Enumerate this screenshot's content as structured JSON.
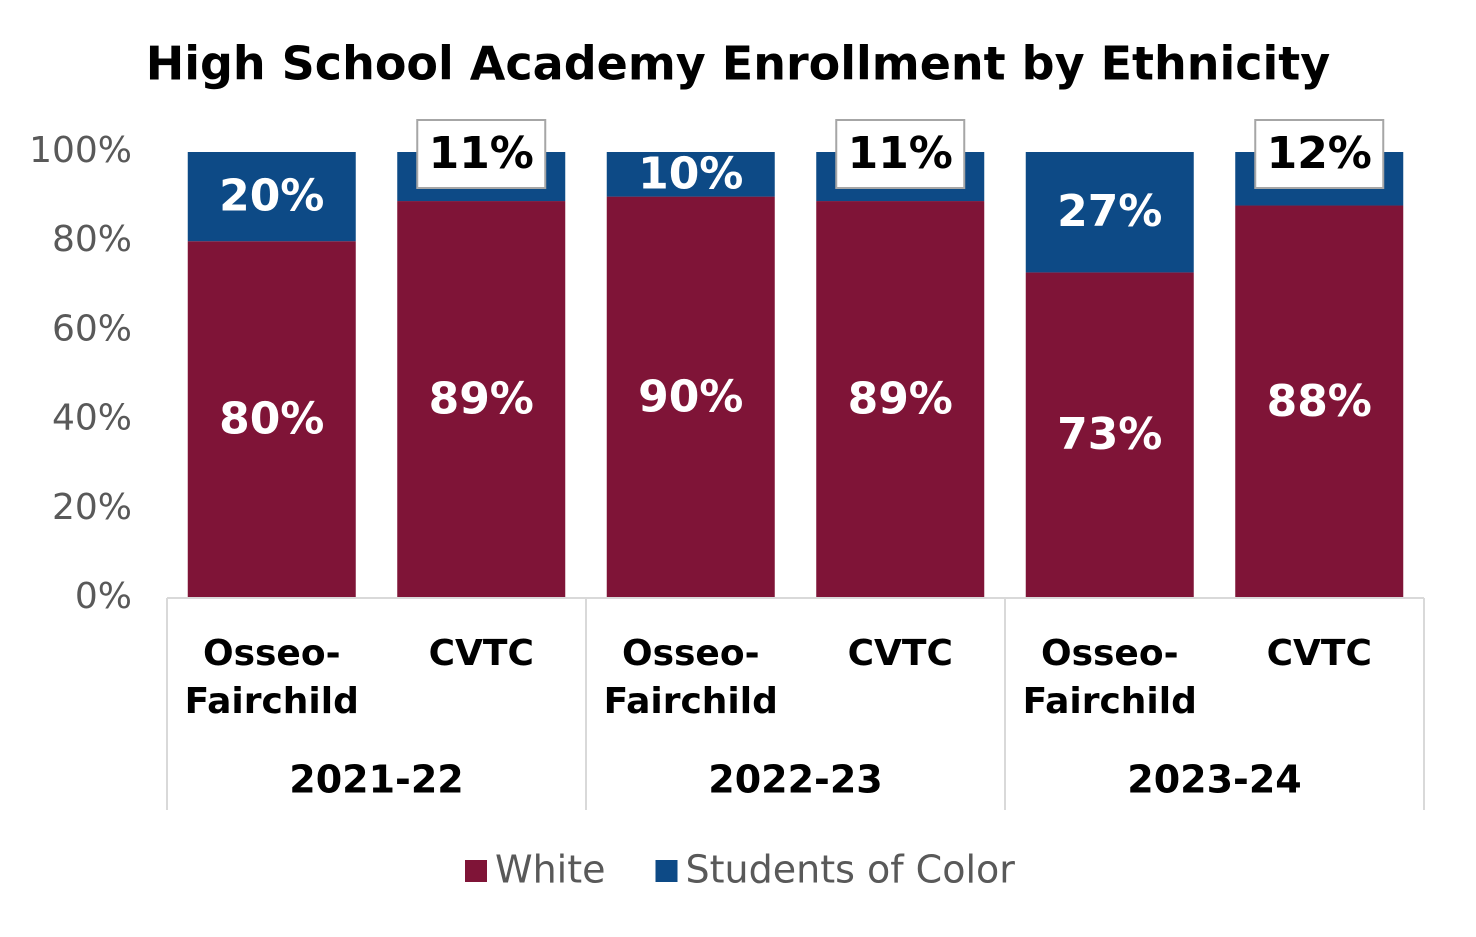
{
  "chart_data": {
    "type": "stacked_bar",
    "title": "High School Academy Enrollment by Ethnicity",
    "categories": [
      "Osseo-Fairchild",
      "CVTC",
      "Osseo-Fairchild",
      "CVTC",
      "Osseo-Fairchild",
      "CVTC"
    ],
    "groups": [
      "2021-22",
      "2022-23",
      "2023-24"
    ],
    "series": [
      {
        "name": "White",
        "color": "#7f1437",
        "values": [
          80,
          89,
          90,
          89,
          73,
          88
        ],
        "value_labels": [
          "80%",
          "89%",
          "90%",
          "89%",
          "73%",
          "88%"
        ]
      },
      {
        "name": "Students of Color",
        "color": "#0d4a86",
        "values": [
          20,
          11,
          10,
          11,
          27,
          12
        ],
        "value_labels": [
          "20%",
          "11%",
          "10%",
          "11%",
          "27%",
          "12%"
        ],
        "label_box": [
          false,
          true,
          false,
          true,
          false,
          true
        ]
      }
    ],
    "ylim": [
      0,
      100
    ],
    "yticks": [
      {
        "value": 0,
        "label": "0%"
      },
      {
        "value": 20,
        "label": "20%"
      },
      {
        "value": 40,
        "label": "40%"
      },
      {
        "value": 60,
        "label": "60%"
      },
      {
        "value": 80,
        "label": "80%"
      },
      {
        "value": 100,
        "label": "100%"
      }
    ],
    "grid": false,
    "legend": "bottom"
  }
}
